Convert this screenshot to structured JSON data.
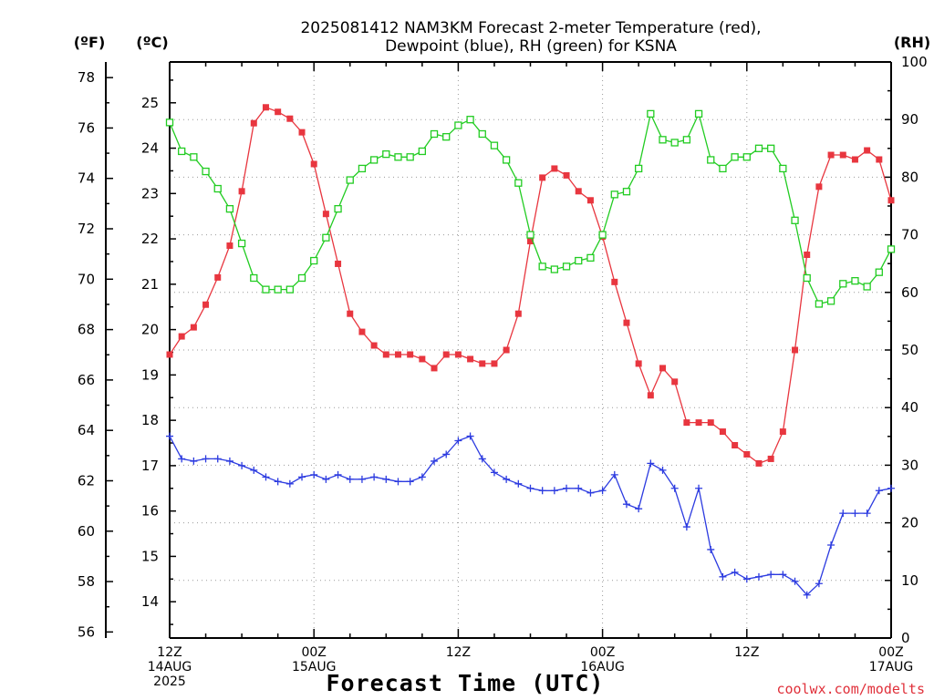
{
  "chart_data": {
    "type": "line",
    "title": [
      "2025081412 NAM3KM Forecast 2-meter Temperature (red),",
      "Dewpoint (blue), RH (green) for KSNA"
    ],
    "xlabel": "Forecast Time (UTC)",
    "credit": "coolwx.com/modelts",
    "unit_labels": {
      "f": "(ºF)",
      "c": "(ºC)",
      "rh": "(RH)"
    },
    "x_range_hours": [
      0,
      60
    ],
    "x_ticks": [
      {
        "h": 0,
        "lines": [
          "12Z",
          "14AUG",
          "2025"
        ]
      },
      {
        "h": 12,
        "lines": [
          "00Z",
          "15AUG"
        ]
      },
      {
        "h": 24,
        "lines": [
          "12Z"
        ]
      },
      {
        "h": 36,
        "lines": [
          "00Z",
          "16AUG"
        ]
      },
      {
        "h": 48,
        "lines": [
          "12Z"
        ]
      },
      {
        "h": 60,
        "lines": [
          "00Z",
          "17AUG"
        ]
      }
    ],
    "y_celsius": {
      "range": [
        13.2,
        25.9
      ],
      "ticks": [
        14,
        15,
        16,
        17,
        18,
        19,
        20,
        21,
        22,
        23,
        24,
        25
      ]
    },
    "y_fahrenheit": {
      "ticks": [
        56,
        58,
        60,
        62,
        64,
        66,
        68,
        70,
        72,
        74,
        76,
        78
      ]
    },
    "y_rh": {
      "range": [
        0,
        100
      ],
      "ticks": [
        0,
        10,
        20,
        30,
        40,
        50,
        60,
        70,
        80,
        90,
        100
      ]
    },
    "grid": true,
    "series": [
      {
        "name": "Temperature",
        "axis": "celsius",
        "color": "#e8363f",
        "marker": "filled-square",
        "x": [
          0,
          1,
          2,
          3,
          4,
          5,
          6,
          7,
          8,
          9,
          10,
          11,
          12,
          13,
          14,
          15,
          16,
          17,
          18,
          19,
          20,
          21,
          22,
          23,
          24,
          25,
          26,
          27,
          28,
          29,
          30,
          31,
          32,
          33,
          34,
          35,
          36,
          37,
          38,
          39,
          40,
          41,
          42,
          43,
          44,
          45,
          46,
          47,
          48,
          49,
          50,
          51,
          52,
          53,
          54,
          55,
          56,
          57,
          58,
          59,
          60
        ],
        "values": [
          19.45,
          19.85,
          20.05,
          20.55,
          21.15,
          21.85,
          23.05,
          24.55,
          24.9,
          24.8,
          24.65,
          24.35,
          23.65,
          22.55,
          21.45,
          20.35,
          19.95,
          19.65,
          19.45,
          19.45,
          19.45,
          19.35,
          19.15,
          19.45,
          19.45,
          19.35,
          19.25,
          19.25,
          19.55,
          20.35,
          21.95,
          23.35,
          23.55,
          23.4,
          23.05,
          22.85,
          22.05,
          21.05,
          20.15,
          19.25,
          18.55,
          19.15,
          18.85,
          17.95,
          17.95,
          17.95,
          17.75,
          17.45,
          17.25,
          17.05,
          17.15,
          17.75,
          19.55,
          21.65,
          23.15,
          23.85,
          23.85,
          23.75,
          23.95,
          23.75,
          22.85
        ]
      },
      {
        "name": "Dewpoint",
        "axis": "celsius",
        "color": "#2c3be0",
        "marker": "plus",
        "x": [
          0,
          1,
          2,
          3,
          4,
          5,
          6,
          7,
          8,
          9,
          10,
          11,
          12,
          13,
          14,
          15,
          16,
          17,
          18,
          19,
          20,
          21,
          22,
          23,
          24,
          25,
          26,
          27,
          28,
          29,
          30,
          31,
          32,
          33,
          34,
          35,
          36,
          37,
          38,
          39,
          40,
          41,
          42,
          43,
          44,
          45,
          46,
          47,
          48,
          49,
          50,
          51,
          52,
          53,
          54,
          55,
          56,
          57,
          58,
          59,
          60
        ],
        "values": [
          17.65,
          17.15,
          17.1,
          17.15,
          17.15,
          17.1,
          17.0,
          16.9,
          16.75,
          16.65,
          16.6,
          16.75,
          16.8,
          16.7,
          16.8,
          16.7,
          16.7,
          16.75,
          16.7,
          16.65,
          16.65,
          16.75,
          17.1,
          17.25,
          17.55,
          17.65,
          17.15,
          16.85,
          16.7,
          16.6,
          16.5,
          16.45,
          16.45,
          16.5,
          16.5,
          16.4,
          16.45,
          16.8,
          16.15,
          16.05,
          17.05,
          16.9,
          16.5,
          15.65,
          16.5,
          15.15,
          14.55,
          14.65,
          14.5,
          14.55,
          14.6,
          14.6,
          14.45,
          14.15,
          14.4,
          15.25,
          15.95,
          15.95,
          15.95,
          16.45,
          16.5
        ]
      },
      {
        "name": "RH",
        "axis": "rh",
        "color": "#22cc22",
        "marker": "open-square",
        "x": [
          0,
          1,
          2,
          3,
          4,
          5,
          6,
          7,
          8,
          9,
          10,
          11,
          12,
          13,
          14,
          15,
          16,
          17,
          18,
          19,
          20,
          21,
          22,
          23,
          24,
          25,
          26,
          27,
          28,
          29,
          30,
          31,
          32,
          33,
          34,
          35,
          36,
          37,
          38,
          39,
          40,
          41,
          42,
          43,
          44,
          45,
          46,
          47,
          48,
          49,
          50,
          51,
          52,
          53,
          54,
          55,
          56,
          57,
          58,
          59,
          60
        ],
        "values": [
          89.5,
          84.5,
          83.5,
          81.0,
          78.0,
          74.5,
          68.5,
          62.5,
          60.5,
          60.5,
          60.5,
          62.5,
          65.5,
          69.5,
          74.5,
          79.5,
          81.5,
          83.0,
          84.0,
          83.5,
          83.5,
          84.5,
          87.5,
          87.0,
          89.0,
          90.0,
          87.5,
          85.5,
          83.0,
          79.0,
          70.0,
          64.5,
          64.0,
          64.5,
          65.5,
          66.0,
          70.0,
          77.0,
          77.5,
          81.5,
          91.0,
          86.5,
          86.0,
          86.5,
          91.0,
          83.0,
          81.5,
          83.5,
          83.5,
          85.0,
          85.0,
          81.5,
          72.5,
          62.5,
          58.0,
          58.5,
          61.5,
          62.0,
          61.0,
          63.5,
          67.5
        ]
      }
    ]
  }
}
